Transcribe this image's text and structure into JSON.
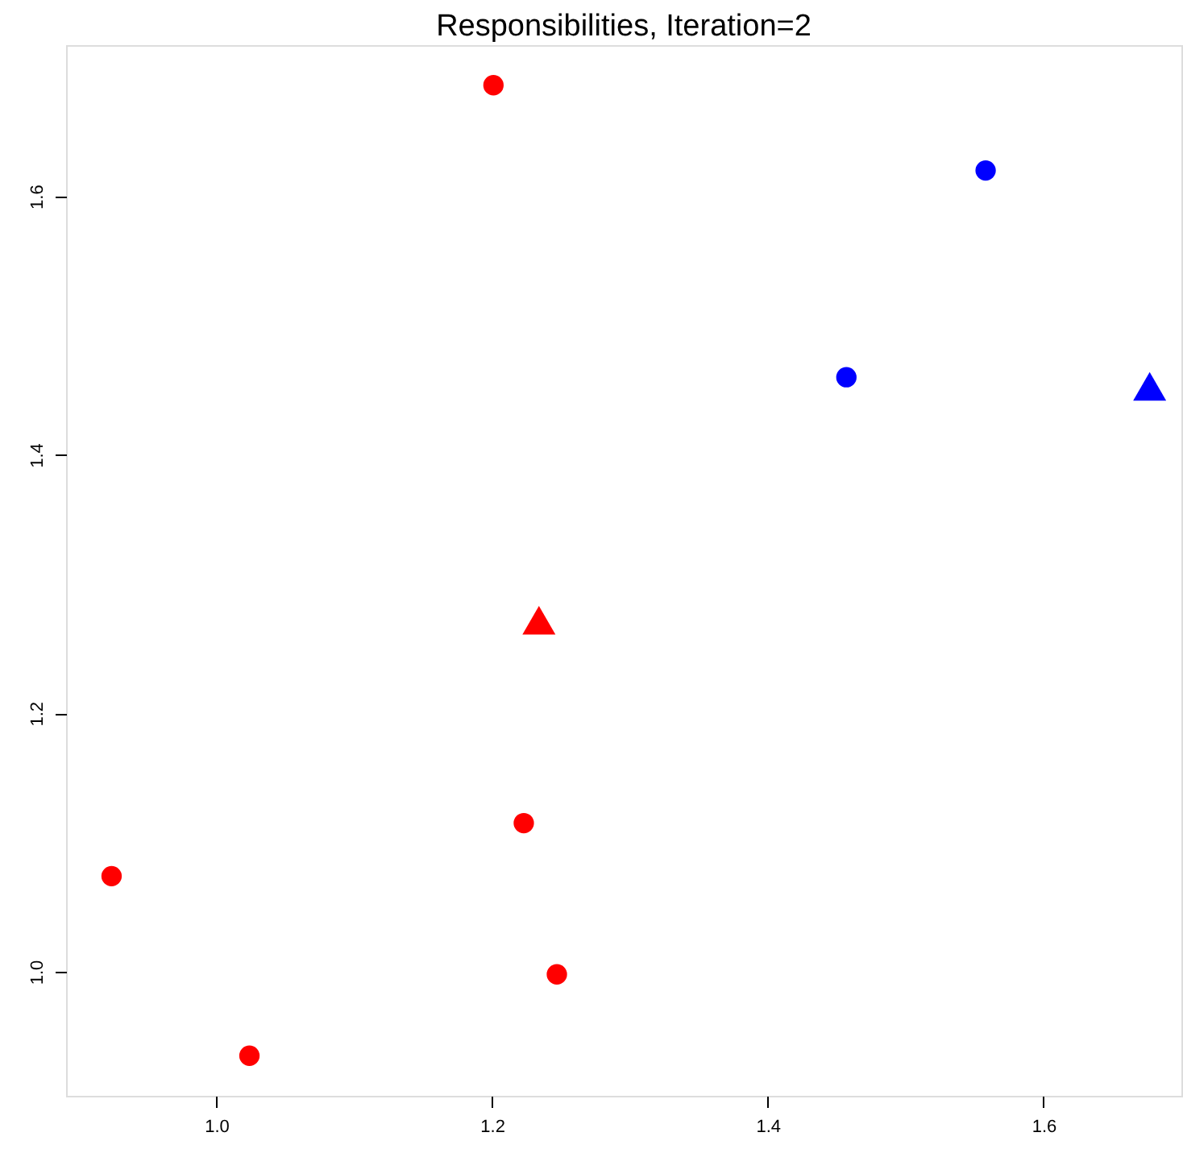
{
  "chart_data": {
    "type": "scatter",
    "title": "Responsibilities, Iteration=2",
    "xlim": [
      0.891,
      1.7
    ],
    "ylim": [
      0.904,
      1.717
    ],
    "xticks": [
      {
        "value": 1.0,
        "label": "1.0"
      },
      {
        "value": 1.2,
        "label": "1.2"
      },
      {
        "value": 1.4,
        "label": "1.4"
      },
      {
        "value": 1.6,
        "label": "1.6"
      }
    ],
    "yticks": [
      {
        "value": 1.0,
        "label": "1.0"
      },
      {
        "value": 1.2,
        "label": "1.2"
      },
      {
        "value": 1.4,
        "label": "1.4"
      },
      {
        "value": 1.6,
        "label": "1.6"
      }
    ],
    "grid": false,
    "series": [
      {
        "color": "#ff0000",
        "marker": "circle",
        "x": [
          1.201,
          0.924,
          1.024,
          1.223,
          1.247
        ],
        "values": [
          1.686,
          1.074,
          0.935,
          1.115,
          0.998
        ]
      },
      {
        "color": "#0000ff",
        "marker": "circle",
        "x": [
          1.558,
          1.457
        ],
        "values": [
          1.62,
          1.46
        ]
      },
      {
        "color": "#ff0000",
        "marker": "triangle",
        "x": [
          1.234
        ],
        "values": [
          1.272
        ]
      },
      {
        "color": "#0000ff",
        "marker": "triangle",
        "x": [
          1.677
        ],
        "values": [
          1.453
        ]
      }
    ]
  }
}
